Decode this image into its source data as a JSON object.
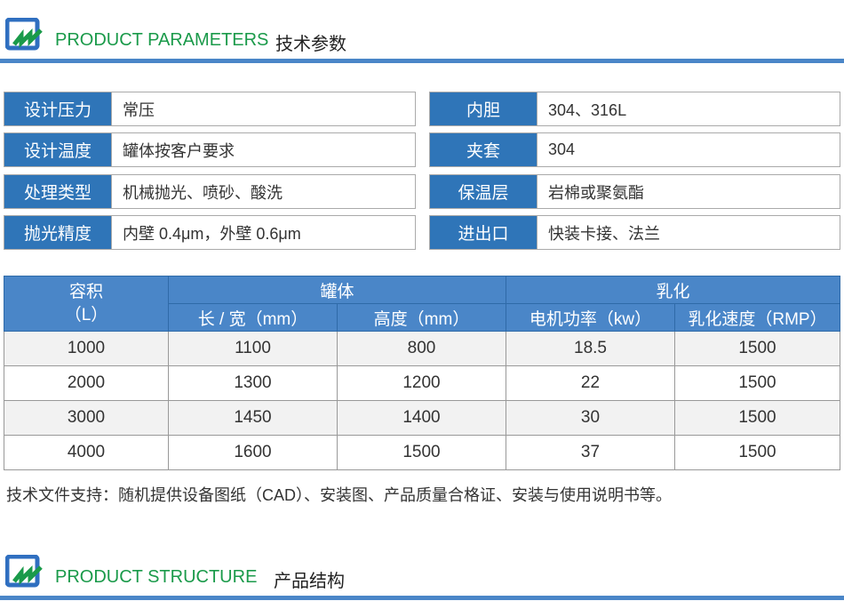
{
  "section1": {
    "title_en": "PRODUCT PARAMETERS",
    "title_cn": "技术参数"
  },
  "params_left": [
    {
      "label": "设计压力",
      "value": "常压"
    },
    {
      "label": "设计温度",
      "value": "罐体按客户要求"
    },
    {
      "label": "处理类型",
      "value": "机械抛光、喷砂、酸洗"
    },
    {
      "label": "抛光精度",
      "value": "内壁 0.4μm，外壁 0.6μm"
    }
  ],
  "params_right": [
    {
      "label": "内胆",
      "value": "304、316L"
    },
    {
      "label": "夹套",
      "value": "304"
    },
    {
      "label": "保温层",
      "value": "岩棉或聚氨酯"
    },
    {
      "label": "进出口",
      "value": "快装卡接、法兰"
    }
  ],
  "table": {
    "col_volume": "容积\n（L）",
    "col_volume_1": "容积",
    "col_volume_2": "（L）",
    "group_tank": "罐体",
    "group_emulsify": "乳化",
    "sub_headers": [
      "长 / 宽（mm）",
      "高度（mm）",
      "电机功率（kw）",
      "乳化速度（RMP）"
    ],
    "rows": [
      [
        "1000",
        "1100",
        "800",
        "18.5",
        "1500"
      ],
      [
        "2000",
        "1300",
        "1200",
        "22",
        "1500"
      ],
      [
        "3000",
        "1450",
        "1400",
        "30",
        "1500"
      ],
      [
        "4000",
        "1600",
        "1500",
        "37",
        "1500"
      ]
    ]
  },
  "note": "技术文件支持：随机提供设备图纸（CAD）、安装图、产品质量合格证、安装与使用说明书等。",
  "section2": {
    "title_en": "PRODUCT STRUCTURE",
    "title_cn": "产品结构"
  },
  "colors": {
    "label_bg": "#2f75b8",
    "header_bg": "#4a86c8",
    "accent_green": "#1a9a4a",
    "divider": "#4a86c8"
  }
}
